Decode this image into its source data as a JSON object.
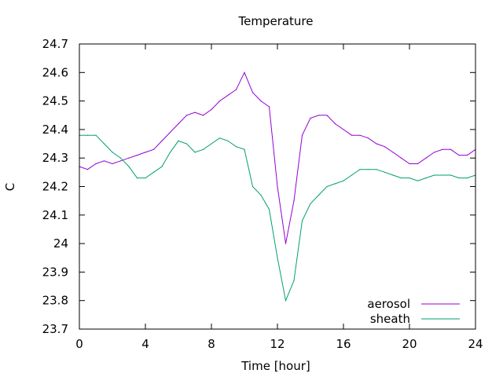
{
  "chart_data": {
    "type": "line",
    "title": "Temperature",
    "xlabel": "Time [hour]",
    "ylabel": "C",
    "xlim": [
      0,
      24
    ],
    "ylim": [
      23.7,
      24.7
    ],
    "xticks": [
      0,
      4,
      8,
      12,
      16,
      20,
      24
    ],
    "xtick_labels": [
      "0",
      "4",
      "8",
      "12",
      "16",
      "20",
      "24"
    ],
    "yticks": [
      23.7,
      23.8,
      23.9,
      24.0,
      24.1,
      24.2,
      24.3,
      24.4,
      24.5,
      24.6,
      24.7
    ],
    "ytick_labels": [
      "23.7",
      "23.8",
      "23.9",
      "24",
      "24.1",
      "24.2",
      "24.3",
      "24.4",
      "24.5",
      "24.6",
      "24.7"
    ],
    "grid": false,
    "legend_position": "bottom-right",
    "series": [
      {
        "name": "aerosol",
        "color": "#9400d3",
        "x": [
          0,
          0.5,
          1,
          1.5,
          2,
          2.5,
          3,
          3.5,
          4,
          4.5,
          5,
          5.5,
          6,
          6.5,
          7,
          7.5,
          8,
          8.5,
          9,
          9.5,
          10,
          10.5,
          11,
          11.5,
          12,
          12.5,
          13,
          13.5,
          14,
          14.5,
          15,
          15.5,
          16,
          16.5,
          17,
          17.5,
          18,
          18.5,
          19,
          19.5,
          20,
          20.5,
          21,
          21.5,
          22,
          22.5,
          23,
          23.5,
          24
        ],
        "y": [
          24.27,
          24.26,
          24.28,
          24.29,
          24.28,
          24.29,
          24.3,
          24.31,
          24.32,
          24.33,
          24.36,
          24.39,
          24.42,
          24.45,
          24.46,
          24.45,
          24.47,
          24.5,
          24.52,
          24.54,
          24.6,
          24.53,
          24.5,
          24.48,
          24.2,
          24.0,
          24.15,
          24.38,
          24.44,
          24.45,
          24.45,
          24.42,
          24.4,
          24.38,
          24.38,
          24.37,
          24.35,
          24.34,
          24.32,
          24.3,
          24.28,
          24.28,
          24.3,
          24.32,
          24.33,
          24.33,
          24.31,
          24.31,
          24.33
        ]
      },
      {
        "name": "sheath",
        "color": "#009e73",
        "x": [
          0,
          0.5,
          1,
          1.5,
          2,
          2.5,
          3,
          3.5,
          4,
          4.5,
          5,
          5.5,
          6,
          6.5,
          7,
          7.5,
          8,
          8.5,
          9,
          9.5,
          10,
          10.5,
          11,
          11.5,
          12,
          12.5,
          13,
          13.5,
          14,
          14.5,
          15,
          15.5,
          16,
          16.5,
          17,
          17.5,
          18,
          18.5,
          19,
          19.5,
          20,
          20.5,
          21,
          21.5,
          22,
          22.5,
          23,
          23.5,
          24
        ],
        "y": [
          24.38,
          24.38,
          24.38,
          24.35,
          24.32,
          24.3,
          24.27,
          24.23,
          24.23,
          24.25,
          24.27,
          24.32,
          24.36,
          24.35,
          24.32,
          24.33,
          24.35,
          24.37,
          24.36,
          24.34,
          24.33,
          24.2,
          24.17,
          24.12,
          23.95,
          23.8,
          23.87,
          24.08,
          24.14,
          24.17,
          24.2,
          24.21,
          24.22,
          24.24,
          24.26,
          24.26,
          24.26,
          24.25,
          24.24,
          24.23,
          24.23,
          24.22,
          24.23,
          24.24,
          24.24,
          24.24,
          24.23,
          24.23,
          24.24
        ]
      }
    ]
  }
}
